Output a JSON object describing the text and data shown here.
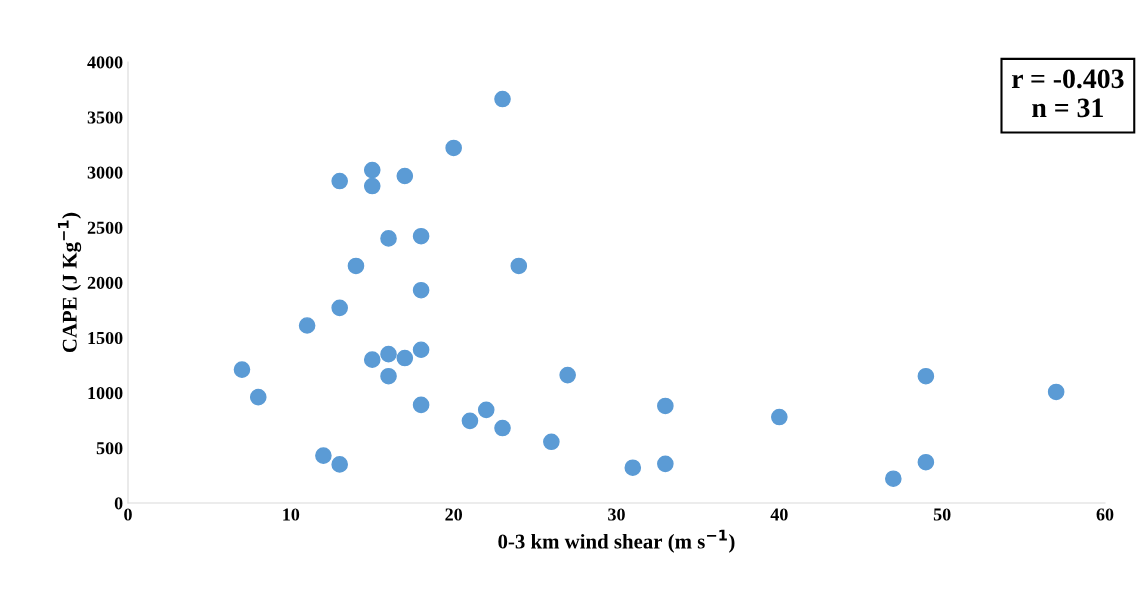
{
  "chart_data": {
    "type": "scatter",
    "xlabel": "0-3 km wind shear (m s$^{−1}$)",
    "ylabel": "CAPE (J Kg$^{−1}$)",
    "annotations": [
      "r = -0.403\nn = 31"
    ],
    "x": [
      7,
      8,
      11,
      12,
      13,
      13,
      13,
      14,
      15,
      15,
      15,
      16,
      16,
      16,
      17,
      17,
      18,
      18,
      18,
      18,
      20,
      21,
      22,
      23,
      23,
      24,
      26,
      27,
      31,
      33,
      33,
      40,
      47,
      49,
      49,
      57
    ],
    "series": [
      {
        "color": "#5b9bd5",
        "values": [
          1210,
          960,
          1610,
          430,
          2920,
          1770,
          350,
          2150,
          3020,
          2875,
          1300,
          2400,
          1350,
          1150,
          2966,
          1315,
          2420,
          1930,
          1390,
          890,
          3220,
          745,
          845,
          3664,
          680,
          2150,
          555,
          1160,
          320,
          880,
          355,
          780,
          220,
          1150,
          370,
          1007
        ]
      }
    ],
    "xlim": [
      0,
      60
    ],
    "xticks": [
      0,
      10,
      20,
      30,
      40,
      50,
      60
    ],
    "ylim": [
      0,
      4000
    ],
    "yticks": [
      0,
      500,
      1000,
      1500,
      2000,
      2500,
      3000,
      3500,
      4000
    ],
    "grid": false,
    "legend": false,
    "marker": "circle"
  }
}
